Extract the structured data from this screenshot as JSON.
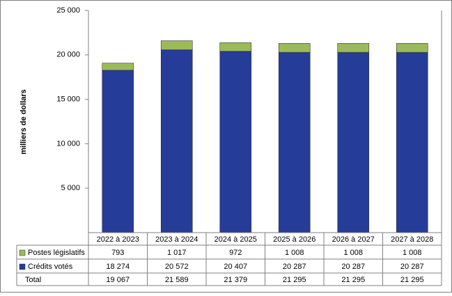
{
  "chart_data": {
    "type": "stacked-bar",
    "y_label": "milliers de dollars",
    "categories": [
      "2022 à 2023",
      "2023 à 2024",
      "2024 à 2025",
      "2025 à 2026",
      "2026 à 2027",
      "2027 à 2028"
    ],
    "series": [
      {
        "name": "Crédits votés",
        "color": "#253c98",
        "values": [
          18274,
          20572,
          20407,
          20287,
          20287,
          20287
        ],
        "value_labels": [
          "18 274",
          "20 572",
          "20 407",
          "20 287",
          "20 287",
          "20 287"
        ]
      },
      {
        "name": "Postes législatifs",
        "color": "#9bbb59",
        "values": [
          793,
          1017,
          972,
          1008,
          1008,
          1008
        ],
        "value_labels": [
          "793",
          "1 017",
          "972",
          "1 008",
          "1 008",
          "1 008"
        ]
      }
    ],
    "total_name": "Total",
    "totals": [
      "19 067",
      "21 589",
      "21 379",
      "21 295",
      "21 295",
      "21 295"
    ],
    "ylim": [
      0,
      25000
    ],
    "yticks": [
      {
        "value": 5000,
        "label": "5 000"
      },
      {
        "value": 10000,
        "label": "10 000"
      },
      {
        "value": 15000,
        "label": "15 000"
      },
      {
        "value": 20000,
        "label": "20 000"
      },
      {
        "value": 25000,
        "label": "25 000"
      }
    ]
  }
}
